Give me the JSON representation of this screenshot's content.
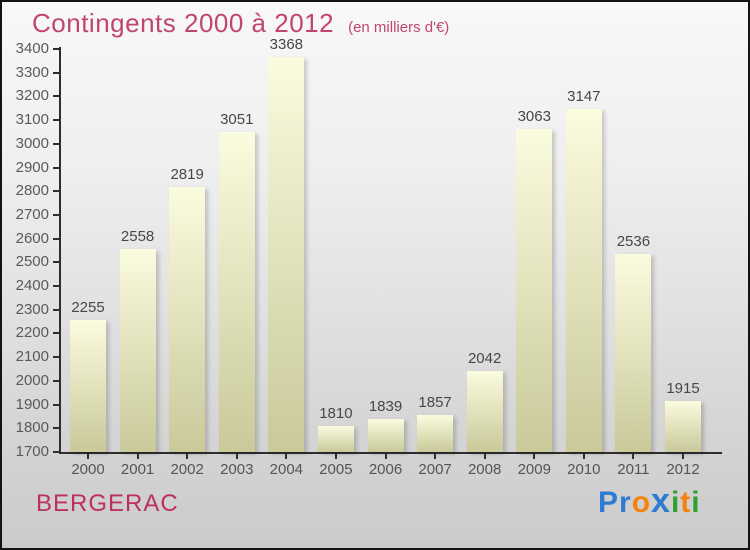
{
  "header": {
    "title": "Contingents 2000 à 2012",
    "subtitle": "(en milliers d'€)",
    "title_color": "#c0466e"
  },
  "chart_data": {
    "type": "bar",
    "categories": [
      "2000",
      "2001",
      "2002",
      "2003",
      "2004",
      "2005",
      "2006",
      "2007",
      "2008",
      "2009",
      "2010",
      "2011",
      "2012"
    ],
    "values": [
      2255,
      2558,
      2819,
      3051,
      3368,
      1810,
      1839,
      1857,
      2042,
      3063,
      3147,
      2536,
      1915
    ],
    "title": "Contingents 2000 à 2012",
    "subtitle": "(en milliers d'€)",
    "xlabel": "",
    "ylabel": "",
    "ylim": [
      1700,
      3400
    ],
    "ytick_step": 100,
    "grid": false,
    "legend": false,
    "bar_color_top": "#fbfbdf",
    "bar_color_bottom": "#c9c99a",
    "axis_color": "#2e2e2e",
    "value_label_color": "#474747",
    "tick_label_color": "#5a5a5a"
  },
  "footer": {
    "location": "BERGERAC",
    "location_color": "#bd2f62",
    "logo_letters": [
      {
        "ch": "P",
        "color": "#2e7bd2",
        "big": false
      },
      {
        "ch": "r",
        "color": "#2e7bd2",
        "big": false
      },
      {
        "ch": "o",
        "color": "#f5820b",
        "big": false
      },
      {
        "ch": "x",
        "color": "#2e7bd2",
        "big": true
      },
      {
        "ch": "i",
        "color": "#2ea12e",
        "big": false
      },
      {
        "ch": "t",
        "color": "#f5820b",
        "big": false
      },
      {
        "ch": "i",
        "color": "#2ea12e",
        "big": false
      }
    ]
  }
}
